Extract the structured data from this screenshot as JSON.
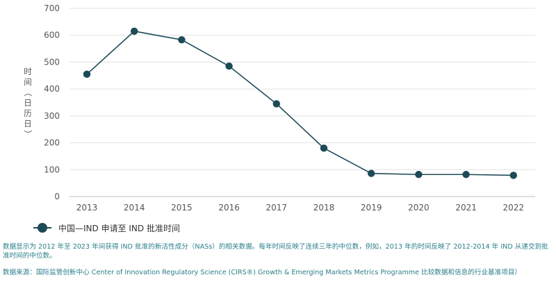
{
  "chart_data": {
    "type": "line",
    "title": "",
    "ylabel": "时间（日历日）",
    "xlabel": "",
    "x": [
      "2013",
      "2014",
      "2015",
      "2016",
      "2017",
      "2018",
      "2019",
      "2020",
      "2021",
      "2022"
    ],
    "series": [
      {
        "name": "中国—IND 申请至 IND 批准时间",
        "values": [
          455,
          615,
          583,
          485,
          345,
          180,
          86,
          82,
          82,
          79
        ],
        "color": "#1d4a57"
      }
    ],
    "ylim": [
      0,
      700
    ],
    "yticks": [
      0,
      100,
      200,
      300,
      400,
      500,
      600,
      700
    ],
    "grid": true,
    "legend_position": "bottom-left"
  },
  "legend": {
    "label": "中国—IND 申请至 IND 批准时间"
  },
  "footnote": {
    "note": "数据显示为 2012 年至 2023 年间获得 IND 批准的新活性成分（NASs）的相关数据。每年时间反映了连续三年的中位数，例如，2013 年的时间反映了 2012-2014 年 IND 从递交到批准时间的中位数。",
    "source": "数据来源：国际监管创新中心 Center of Innovation Regulatory Science (CIRS®) Growth & Emerging Markets Metrics Programme 比较数据和信息的行业基准项目）"
  },
  "colors": {
    "line": "#1d4a57",
    "grid": "#e2e2e2",
    "text": "#555555",
    "footnote": "#2a7f8a"
  }
}
